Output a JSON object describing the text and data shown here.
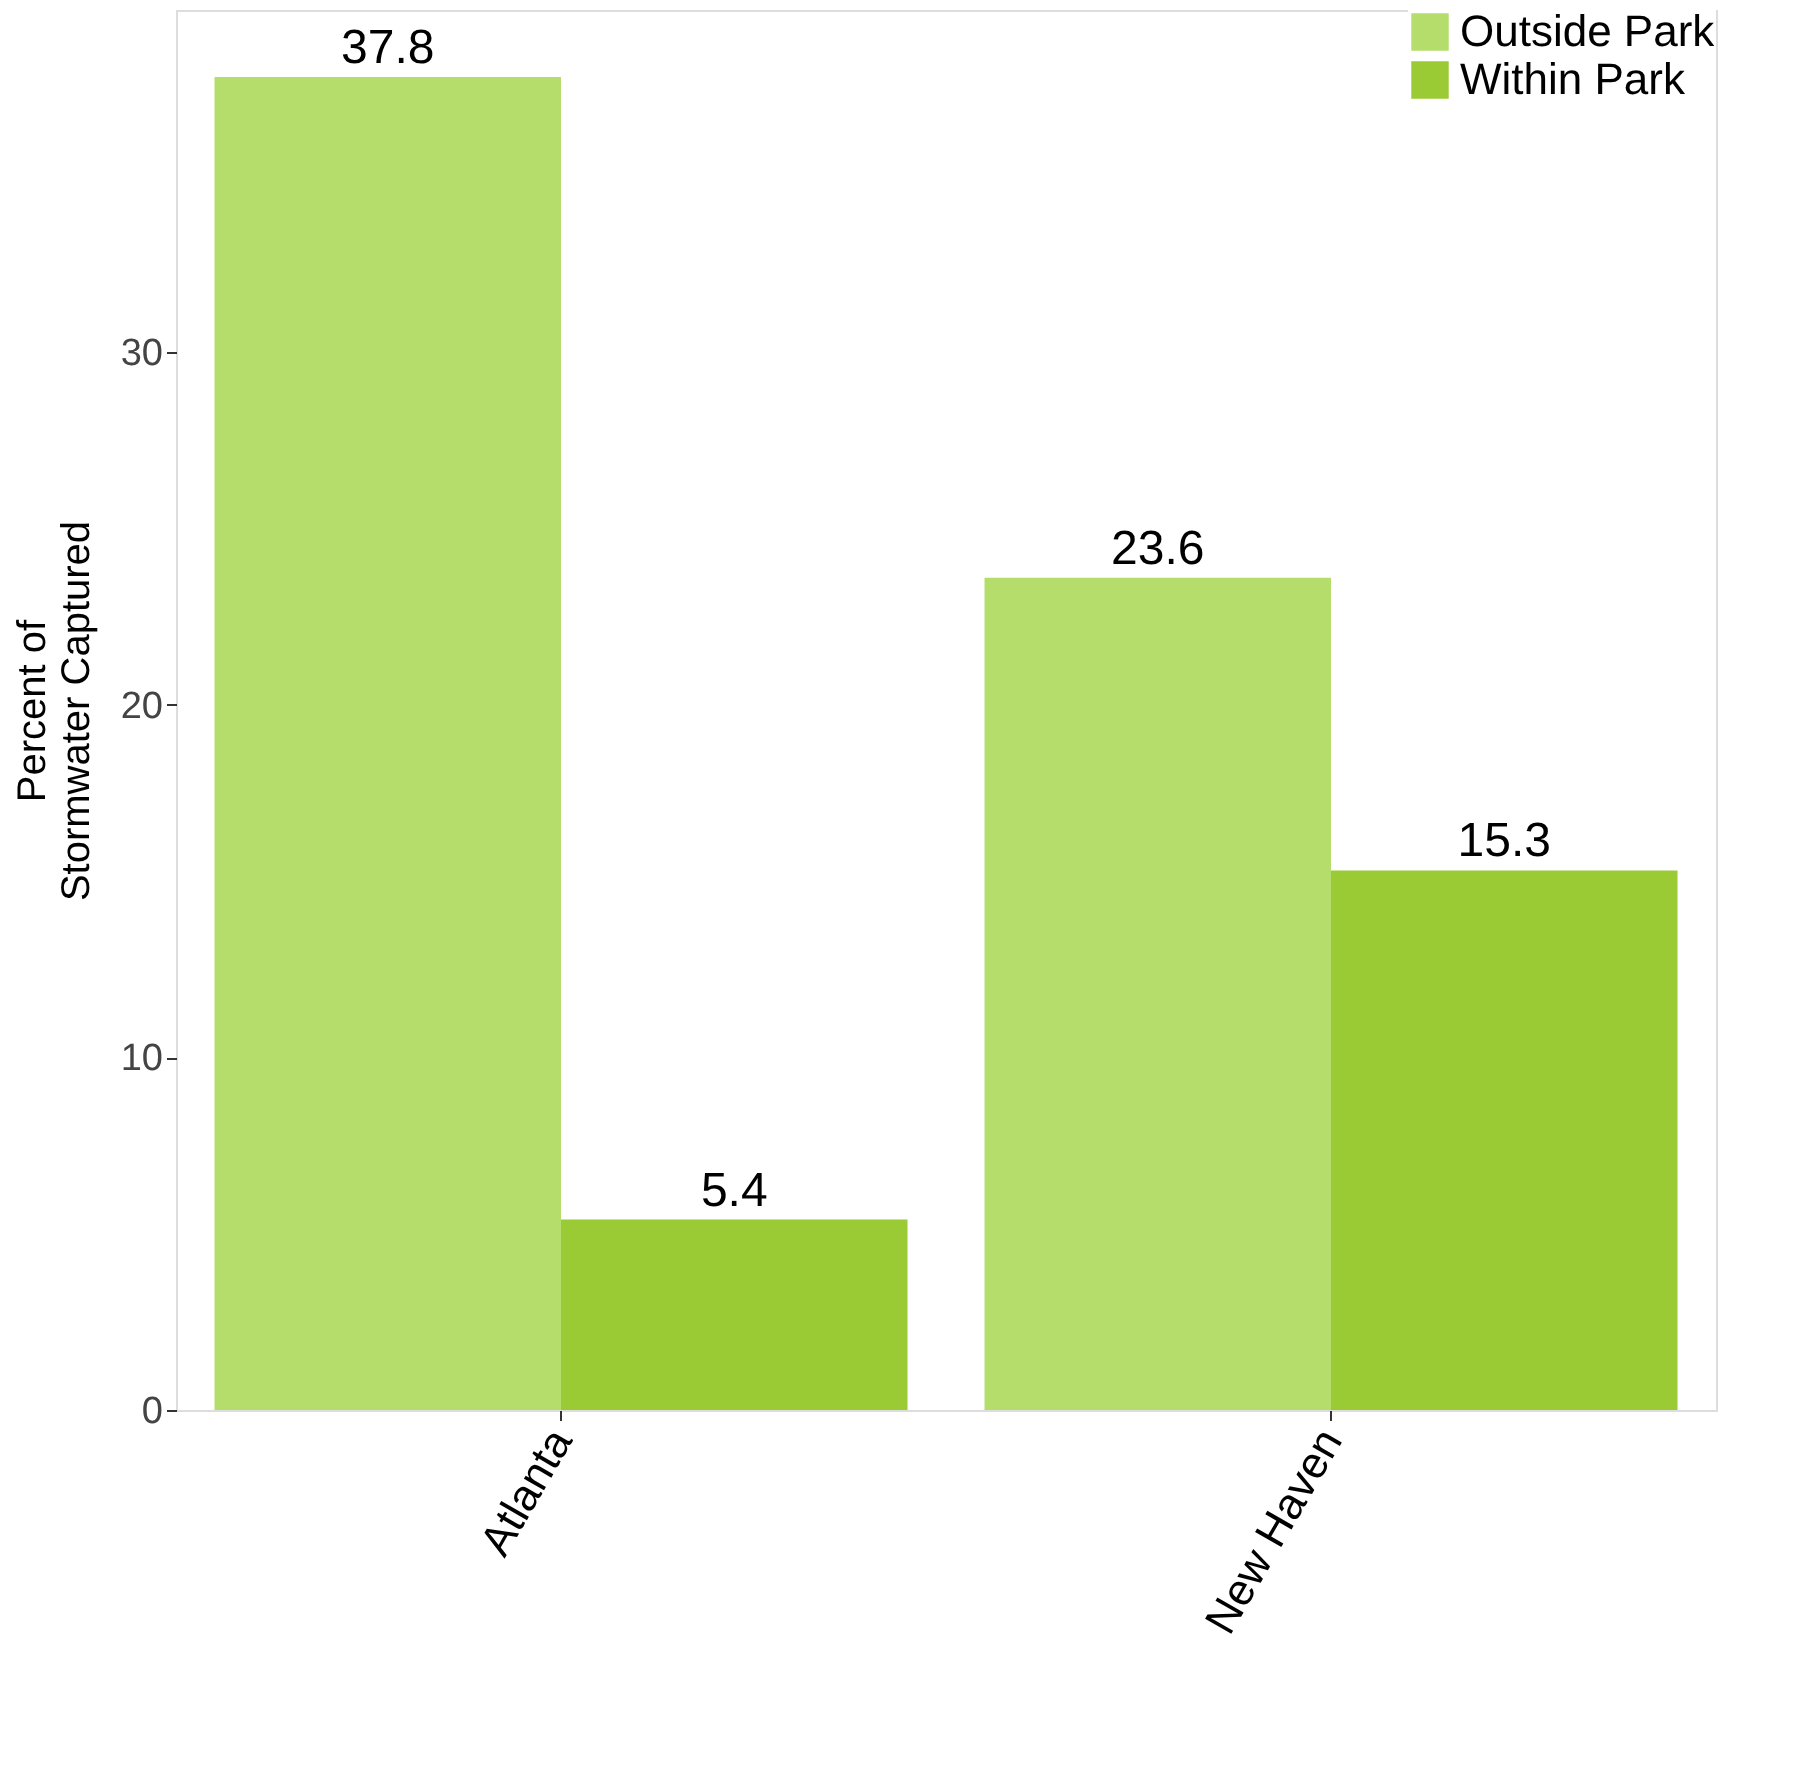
{
  "chart_data": {
    "type": "bar",
    "ylabel": "Percent of\nStormwater Captured",
    "categories": [
      "Atlanta",
      "New Haven"
    ],
    "series": [
      {
        "name": "Outside Park",
        "color": "#b5dd6c",
        "values": [
          37.8,
          23.6
        ]
      },
      {
        "name": "Within Park",
        "color": "#9aca34",
        "values": [
          5.4,
          15.3
        ]
      }
    ],
    "ylim": [
      0,
      39.7
    ],
    "yticks": [
      0,
      10,
      20,
      30
    ],
    "grid": false,
    "legend": "top right",
    "data_labels": true
  }
}
